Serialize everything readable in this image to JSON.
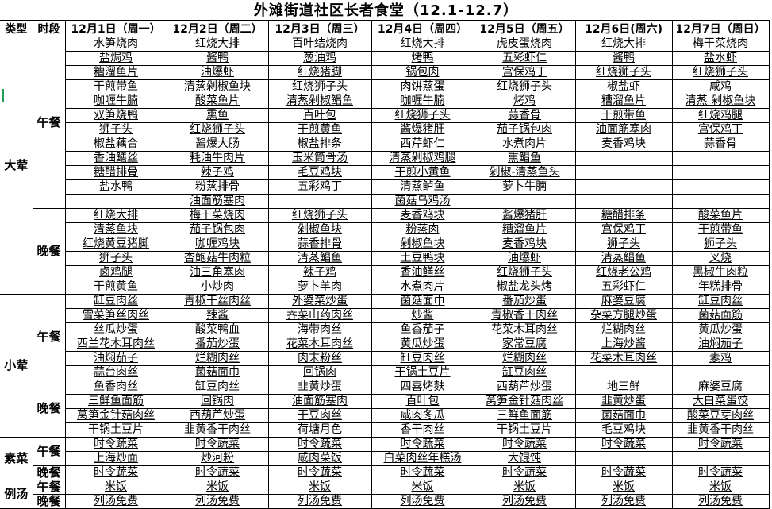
{
  "title": "外滩街道社区长者食堂（12.1-12.7）",
  "header": {
    "type_label": "类型",
    "period_label": "时段",
    "days": [
      "12月1日（周一）",
      "12月2日（周二）",
      "12月3日（周三）",
      "12月4日（周四）",
      "12月5日（周五）",
      "12月6日(周六)",
      "12月7日（周日）"
    ]
  },
  "sections": [
    {
      "name": "大荤",
      "meals": [
        {
          "name": "午餐",
          "rows": [
            [
              "水笋烧肉",
              "红烧大排",
              "百叶结烧肉",
              "红烧大排",
              "虎皮蛋烧肉",
              "红烧大排",
              "梅干菜烧肉"
            ],
            [
              "盐焗鸡",
              "酱鸭",
              "葱油鸡",
              "烤鸭",
              "五彩虾仁",
              "酱鸭",
              "盐水虾"
            ],
            [
              "糟溜鱼片",
              "油爆虾",
              "红烧猪脚",
              "锅包肉",
              "宫保鸡丁",
              "红烧狮子头",
              "红烧狮子头"
            ],
            [
              "干煎带鱼",
              "清蒸剁椒鱼块",
              "红烧狮子头",
              "肉饼蒸蛋",
              "红烧狮子头",
              "椒盐虾",
              "咸鸡"
            ],
            [
              "咖喱牛腩",
              "酸菜鱼片",
              "清蒸剁椒鲳鱼",
              "咖喱牛腩",
              "烤鸡",
              "糟溜鱼片",
              "清蒸 剁椒鱼块"
            ],
            [
              "双笋烧鸭",
              "熏鱼",
              "百叶包",
              "红烧狮子头",
              "蒜香骨",
              "干煎带鱼",
              "红烧鸡腿"
            ],
            [
              "狮子头",
              "红烧狮子头",
              "干煎黄鱼",
              "酱爆猪肝",
              "茄子锅包肉",
              "油面筋塞肉",
              "宫保鸡丁"
            ],
            [
              "椒盐藕合",
              "酱爆大肠",
              "椒盐排条",
              "西芹虾仁",
              "水煮肉片",
              "麦香鸡块",
              "蒜香骨"
            ],
            [
              "香油鳝丝",
              "耗油牛肉片",
              "玉米筒骨汤",
              "清蒸剁椒鸡腿",
              "熏鲳鱼",
              "",
              ""
            ],
            [
              "糖醋排骨",
              "辣子鸡",
              "毛豆鸡块",
              "干煎小黄鱼",
              "剁椒-清蒸鱼头",
              "",
              ""
            ],
            [
              "盐水鸭",
              "粉蒸排骨",
              "五彩鸡丁",
              "清蒸鲈鱼",
              "萝卜牛腩",
              "",
              ""
            ],
            [
              "",
              "油面筋塞肉",
              "",
              "菌菇乌鸡汤",
              "",
              "",
              ""
            ]
          ]
        },
        {
          "name": "晚餐",
          "rows": [
            [
              "红烧大排",
              "梅干菜烧肉",
              "红烧狮子头",
              "麦香鸡块",
              "酱爆猪肝",
              "糖醋排条",
              "酸菜鱼片"
            ],
            [
              "清蒸鱼块",
              "茄子锅包肉",
              "剁椒鱼块",
              "粉蒸肉",
              "糟溜鱼片",
              "宫保鸡丁",
              "干煎带鱼"
            ],
            [
              "红烧黄豆猪脚",
              "咖喱鸡块",
              "蒜香排骨",
              "剁椒鱼块",
              "麦香鸡块",
              "狮子头",
              "狮子头"
            ],
            [
              "狮子头",
              "杏鲍菇牛肉粒",
              "清蒸鲳鱼",
              "土豆鸭块",
              "油爆虾",
              "清蒸鲳鱼",
              "叉烧"
            ],
            [
              "卤鸡腿",
              "油三角塞肉",
              "辣子鸡",
              "香油鳝丝",
              "红烧狮子头",
              "红烧老公鸡",
              "黑椒牛肉粒"
            ],
            [
              "干煎黄鱼",
              "小炒肉",
              "萝卜羊肉",
              "水煮肉片",
              "椒盐龙头烤",
              "五彩虾仁",
              "年糕排骨"
            ]
          ]
        }
      ]
    },
    {
      "name": "小荤",
      "meals": [
        {
          "name": "午餐",
          "rows": [
            [
              "缸豆肉丝",
              "青椒干丝肉丝",
              "外婆菜炒蛋",
              "菌菇面巾",
              "番茄炒蛋",
              "麻婆豆腐",
              "缸豆肉丝"
            ],
            [
              "雪菜笋丝肉丝",
              "辣酱",
              "荠菜山药肉丝",
              "炒酱",
              "青椒香干肉丝",
              "杂菜方腿炒蛋",
              "菌菇面筋"
            ],
            [
              "丝瓜炒蛋",
              "酸菜鸭血",
              "海带肉丝",
              "鱼香茄子",
              "花菜木耳肉丝",
              "烂糊肉丝",
              "黄瓜炒蛋"
            ],
            [
              "西兰花木耳肉丝",
              "番茄炒蛋",
              "花菜木耳肉丝",
              "黄瓜炒蛋",
              "家常豆腐",
              "上海炒酱",
              "油焖茄子"
            ],
            [
              "油焖茄子",
              "烂糊肉丝",
              "肉末粉丝",
              "缸豆肉丝",
              "烂糊肉丝",
              "花菜木耳肉丝",
              "素鸡"
            ],
            [
              "蒜台肉丝",
              "菌菇面巾",
              "回锅肉",
              "干锅土豆片",
              "缸豆肉丝",
              "",
              ""
            ]
          ]
        },
        {
          "name": "晚餐",
          "rows": [
            [
              "鱼香肉丝",
              "缸豆肉丝",
              "韭黄炒蛋",
              "四喜烤麸",
              "西葫芦炒蛋",
              "地三鲜",
              "麻婆豆腐"
            ],
            [
              "三鲜鱼面筋",
              "回锅肉",
              "油面筋塞肉",
              "百叶包",
              "莴笋金针菇肉丝",
              "韭黄炒蛋",
              "大白菜蛋饺"
            ],
            [
              "莴笋金针菇肉丝",
              "西葫芦炒蛋",
              "干豆肉丝",
              "咸肉冬瓜",
              "三鲜鱼面筋",
              "菌菇面巾",
              "酸菜豆芽肉丝"
            ],
            [
              "干锅土豆片",
              "韭黄香干肉丝",
              "荷塘月色",
              "香干肉丝",
              "干锅土豆片",
              "毛豆鸡块",
              "韭黄香干肉丝"
            ]
          ]
        }
      ]
    },
    {
      "name": "素菜",
      "meals": [
        {
          "name": "午餐",
          "rows": [
            [
              "时令蔬菜",
              "时令蔬菜",
              "时令蔬菜",
              "时令蔬菜",
              "时令蔬菜",
              "时令蔬菜",
              "时令蔬菜"
            ],
            [
              "上海炒面",
              "炒河粉",
              "咸肉菜饭",
              "白菜肉丝年糕汤",
              "大馄饨",
              "",
              ""
            ]
          ]
        },
        {
          "name": "晚餐",
          "rows": [
            [
              "时令蔬菜",
              "时令蔬菜",
              "时令蔬菜",
              "时令蔬菜",
              "时令蔬菜",
              "时令蔬菜",
              "时令蔬菜"
            ]
          ]
        }
      ]
    },
    {
      "name": "例汤",
      "meals": [
        {
          "name": "午餐",
          "rows": [
            [
              "米饭",
              "米饭",
              "米饭",
              "米饭",
              "米饭",
              "米饭",
              "米饭"
            ]
          ]
        },
        {
          "name": "晚餐",
          "rows": [
            [
              "列汤免费",
              "列汤免费",
              "列汤免费",
              "列汤免费",
              "列汤免费",
              "列汤免费",
              "列汤免费"
            ]
          ]
        }
      ]
    }
  ]
}
